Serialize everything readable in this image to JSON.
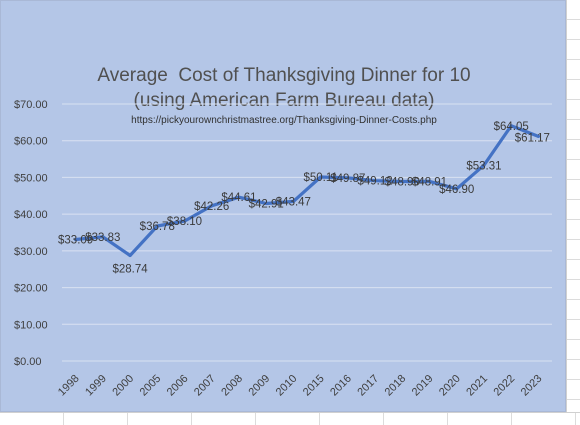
{
  "chart_data": {
    "type": "line",
    "title": "Average  Cost of Thanksgiving Dinner for 10",
    "subtitle": "(using American Farm Bureau data)",
    "source": "https://pickyourownchristmastree.org/Thanksgiving-Dinner-Costs.php",
    "xlabel": "",
    "ylabel": "",
    "categories": [
      "1998",
      "1999",
      "2000",
      "2005",
      "2006",
      "2007",
      "2008",
      "2009",
      "2010",
      "2015",
      "2016",
      "2017",
      "2018",
      "2019",
      "2020",
      "2021",
      "2022",
      "2023"
    ],
    "series": [
      {
        "values": [
          33.09,
          33.83,
          28.74,
          36.78,
          38.1,
          42.26,
          44.61,
          42.91,
          43.47,
          50.11,
          49.87,
          49.12,
          48.9,
          48.91,
          46.9,
          53.31,
          64.05,
          61.17
        ],
        "labels": [
          "$33.09",
          "$33.83",
          "$28.74",
          "$36.78",
          "$38.10",
          "$42.26",
          "$44.61",
          "$42.91",
          "$43.47",
          "$50.11",
          "$49.87",
          "$49.12",
          "$48.90",
          "$48.91",
          "$46.90",
          "$53.31",
          "$64.05",
          "$61.17"
        ],
        "color": "#4472c4"
      }
    ],
    "ylim": [
      0,
      70
    ],
    "yticks": [
      "$0.00",
      "$10.00",
      "$20.00",
      "$30.00",
      "$40.00",
      "$50.00",
      "$60.00",
      "$70.00"
    ],
    "grid": true,
    "legend": "none"
  },
  "colors": {
    "plot_background": "#b4c6e7",
    "gridline": "#d9e1f2",
    "line": "#4472c4"
  }
}
